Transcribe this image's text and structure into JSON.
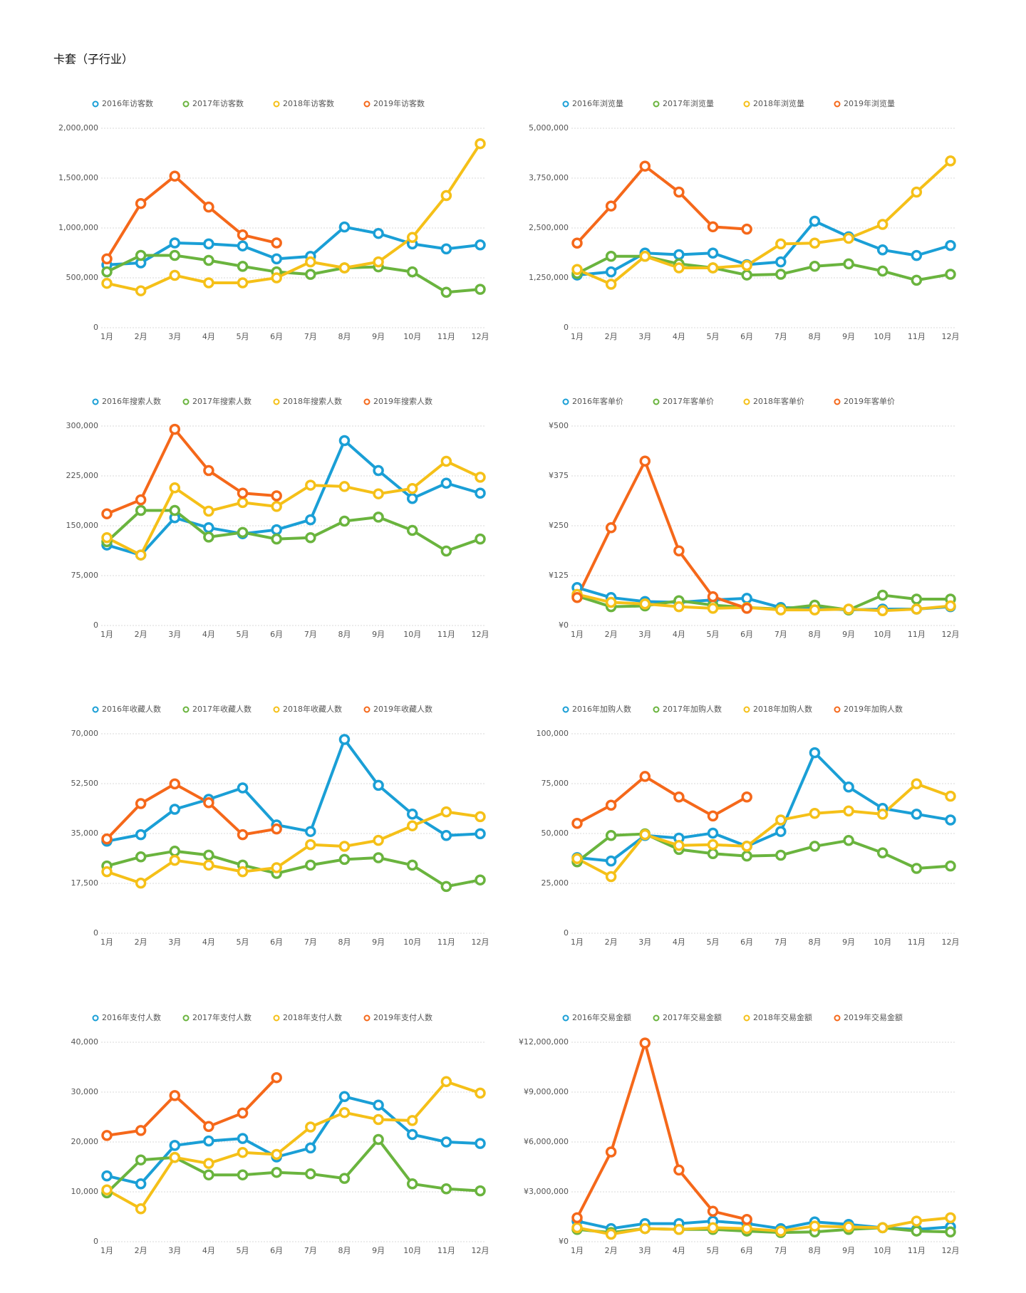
{
  "title": "卡套（子行业）",
  "chart_data": [
    {
      "type": "line",
      "categories": [
        "1月",
        "2月",
        "3月",
        "4月",
        "5月",
        "6月",
        "7月",
        "8月",
        "9月",
        "10月",
        "11月",
        "12月"
      ],
      "ylim": [
        0,
        2000000
      ],
      "yticks": [
        0,
        {
          "value": 500000,
          "label": "500,000"
        },
        {
          "value": 1000000,
          "label": "1,000,000"
        },
        {
          "value": 1500000,
          "label": "1,500,000"
        },
        {
          "value": 2000000,
          "label": "2,000,000"
        }
      ],
      "grid": true,
      "legend": "top",
      "series": [
        {
          "name": "2016年访客数",
          "color": "#1a9fd6",
          "values": [
            630000,
            650000,
            850000,
            840000,
            820000,
            690000,
            715000,
            1010000,
            945000,
            840000,
            790000,
            830000
          ]
        },
        {
          "name": "2017年访客数",
          "color": "#6ab43e",
          "values": [
            560000,
            725000,
            725000,
            675000,
            615000,
            560000,
            535000,
            600000,
            610000,
            560000,
            355000,
            385000
          ]
        },
        {
          "name": "2018年访客数",
          "color": "#f5c018",
          "values": [
            445000,
            370000,
            525000,
            450000,
            450000,
            500000,
            660000,
            600000,
            660000,
            905000,
            1325000,
            1845000
          ]
        },
        {
          "name": "2019年访客数",
          "color": "#f5681a",
          "values": [
            690000,
            1245000,
            1520000,
            1210000,
            930000,
            850000,
            null,
            null,
            null,
            null,
            null,
            null
          ]
        }
      ]
    },
    {
      "type": "line",
      "categories": [
        "1月",
        "2月",
        "3月",
        "4月",
        "5月",
        "6月",
        "7月",
        "8月",
        "9月",
        "10月",
        "11月",
        "12月"
      ],
      "ylim": [
        0,
        5000000
      ],
      "yticks": [
        0,
        {
          "value": 1250000,
          "label": "1,250,000"
        },
        {
          "value": 2500000,
          "label": "2,500,000"
        },
        {
          "value": 3750000,
          "label": "3,750,000"
        },
        {
          "value": 5000000,
          "label": "5,000,000"
        }
      ],
      "grid": true,
      "legend": "top",
      "series": [
        {
          "name": "2016年浏览量",
          "color": "#1a9fd6",
          "values": [
            1320000,
            1400000,
            1870000,
            1830000,
            1870000,
            1580000,
            1650000,
            2670000,
            2280000,
            1950000,
            1810000,
            2060000
          ]
        },
        {
          "name": "2017年浏览量",
          "color": "#6ab43e",
          "values": [
            1360000,
            1790000,
            1790000,
            1600000,
            1500000,
            1320000,
            1340000,
            1540000,
            1600000,
            1420000,
            1190000,
            1340000
          ]
        },
        {
          "name": "2018年浏览量",
          "color": "#f5c018",
          "values": [
            1460000,
            1090000,
            1790000,
            1500000,
            1500000,
            1560000,
            2100000,
            2120000,
            2240000,
            2590000,
            3400000,
            4180000
          ]
        },
        {
          "name": "2019年浏览量",
          "color": "#f5681a",
          "values": [
            2120000,
            3050000,
            4050000,
            3400000,
            2530000,
            2470000,
            null,
            null,
            null,
            null,
            null,
            null
          ]
        }
      ]
    },
    {
      "type": "line",
      "categories": [
        "1月",
        "2月",
        "3月",
        "4月",
        "5月",
        "6月",
        "7月",
        "8月",
        "9月",
        "10月",
        "11月",
        "12月"
      ],
      "ylim": [
        0,
        300000
      ],
      "yticks": [
        0,
        {
          "value": 75000,
          "label": "75,000"
        },
        {
          "value": 150000,
          "label": "150,000"
        },
        {
          "value": 225000,
          "label": "225,000"
        },
        {
          "value": 300000,
          "label": "300,000"
        }
      ],
      "grid": true,
      "legend": "top",
      "series": [
        {
          "name": "2016年搜索人数",
          "color": "#1a9fd6",
          "values": [
            121000,
            106000,
            162000,
            147000,
            138000,
            144000,
            159000,
            278000,
            233000,
            191000,
            214000,
            199000
          ]
        },
        {
          "name": "2017年搜索人数",
          "color": "#6ab43e",
          "values": [
            126000,
            173000,
            173000,
            133000,
            140000,
            130000,
            132000,
            157000,
            163000,
            143000,
            112000,
            130000
          ]
        },
        {
          "name": "2018年搜索人数",
          "color": "#f5c018",
          "values": [
            132000,
            106000,
            207000,
            172000,
            185000,
            179000,
            211000,
            209000,
            198000,
            206000,
            247000,
            223000
          ]
        },
        {
          "name": "2019年搜索人数",
          "color": "#f5681a",
          "values": [
            168000,
            189000,
            295000,
            233000,
            199000,
            195000,
            null,
            null,
            null,
            null,
            null,
            null
          ]
        }
      ]
    },
    {
      "type": "line",
      "categories": [
        "1月",
        "2月",
        "3月",
        "4月",
        "5月",
        "6月",
        "7月",
        "8月",
        "9月",
        "10月",
        "11月",
        "12月"
      ],
      "ylim": [
        0,
        500
      ],
      "yticks": [
        {
          "value": 0,
          "label": "¥0"
        },
        {
          "value": 125,
          "label": "¥125"
        },
        {
          "value": 250,
          "label": "¥250"
        },
        {
          "value": 375,
          "label": "¥375"
        },
        {
          "value": 500,
          "label": "¥500"
        }
      ],
      "grid": true,
      "legend": "top",
      "series": [
        {
          "name": "2016年客单价",
          "color": "#1a9fd6",
          "values": [
            95,
            70,
            60,
            58,
            64,
            68,
            45,
            43,
            39,
            41,
            41,
            47
          ]
        },
        {
          "name": "2017年客单价",
          "color": "#6ab43e",
          "values": [
            74,
            47,
            49,
            62,
            51,
            45,
            41,
            51,
            39,
            76,
            66,
            66
          ]
        },
        {
          "name": "2018年客单价",
          "color": "#f5c018",
          "values": [
            78,
            58,
            54,
            47,
            43,
            45,
            39,
            39,
            41,
            37,
            41,
            49
          ]
        },
        {
          "name": "2019年客单价",
          "color": "#f5681a",
          "values": [
            70,
            245,
            412,
            187,
            72,
            43,
            null,
            null,
            null,
            null,
            null,
            null
          ]
        }
      ]
    },
    {
      "type": "line",
      "categories": [
        "1月",
        "2月",
        "3月",
        "4月",
        "5月",
        "6月",
        "7月",
        "8月",
        "9月",
        "10月",
        "11月",
        "12月"
      ],
      "ylim": [
        0,
        70000
      ],
      "yticks": [
        0,
        {
          "value": 17500,
          "label": "17,500"
        },
        {
          "value": 35000,
          "label": "35,000"
        },
        {
          "value": 52500,
          "label": "52,500"
        },
        {
          "value": 70000,
          "label": "70,000"
        }
      ],
      "grid": true,
      "legend": "top",
      "series": [
        {
          "name": "2016年收藏人数",
          "color": "#1a9fd6",
          "values": [
            32300,
            34600,
            43500,
            47000,
            51000,
            38000,
            35700,
            68000,
            51900,
            41800,
            34300,
            34900
          ]
        },
        {
          "name": "2017年收藏人数",
          "color": "#6ab43e",
          "values": [
            23600,
            26800,
            28800,
            27400,
            23900,
            21000,
            23900,
            25900,
            26500,
            23900,
            16400,
            18700
          ]
        },
        {
          "name": "2018年收藏人数",
          "color": "#f5c018",
          "values": [
            21600,
            17600,
            25600,
            23900,
            21600,
            23000,
            31100,
            30500,
            32600,
            37700,
            42600,
            40900
          ]
        },
        {
          "name": "2019年收藏人数",
          "color": "#f5681a",
          "values": [
            33100,
            45500,
            52400,
            45800,
            34600,
            36600,
            null,
            null,
            null,
            null,
            null,
            null
          ]
        }
      ]
    },
    {
      "type": "line",
      "categories": [
        "1月",
        "2月",
        "3月",
        "4月",
        "5月",
        "6月",
        "7月",
        "8月",
        "9月",
        "10月",
        "11月",
        "12月"
      ],
      "ylim": [
        0,
        100000
      ],
      "yticks": [
        0,
        {
          "value": 25000,
          "label": "25,000"
        },
        {
          "value": 50000,
          "label": "50,000"
        },
        {
          "value": 75000,
          "label": "75,000"
        },
        {
          "value": 100000,
          "label": "100,000"
        }
      ],
      "grid": true,
      "legend": "top",
      "series": [
        {
          "name": "2016年加购人数",
          "color": "#1a9fd6",
          "values": [
            37900,
            36200,
            49000,
            47700,
            50200,
            43600,
            51000,
            90500,
            73300,
            62600,
            59700,
            56800
          ]
        },
        {
          "name": "2017年加购人数",
          "color": "#6ab43e",
          "values": [
            35800,
            49000,
            49800,
            42000,
            39900,
            38700,
            39100,
            43600,
            46500,
            40300,
            32500,
            33700
          ]
        },
        {
          "name": "2018年加购人数",
          "color": "#f5c018",
          "values": [
            37400,
            28400,
            49400,
            44000,
            44400,
            43600,
            56800,
            60100,
            61300,
            59700,
            74900,
            68700
          ]
        },
        {
          "name": "2019年加购人数",
          "color": "#f5681a",
          "values": [
            55100,
            64200,
            78600,
            68300,
            58800,
            68300,
            null,
            null,
            null,
            null,
            null,
            null
          ]
        }
      ]
    },
    {
      "type": "line",
      "categories": [
        "1月",
        "2月",
        "3月",
        "4月",
        "5月",
        "6月",
        "7月",
        "8月",
        "9月",
        "10月",
        "11月",
        "12月"
      ],
      "ylim": [
        0,
        40000
      ],
      "yticks": [
        0,
        {
          "value": 10000,
          "label": "10,000"
        },
        {
          "value": 20000,
          "label": "20,000"
        },
        {
          "value": 30000,
          "label": "30,000"
        },
        {
          "value": 40000,
          "label": "40,000"
        }
      ],
      "grid": true,
      "legend": "top",
      "series": [
        {
          "name": "2016年支付人数",
          "color": "#1a9fd6",
          "values": [
            13200,
            11600,
            19300,
            20200,
            20700,
            17000,
            18800,
            29100,
            27400,
            21500,
            20000,
            19700
          ]
        },
        {
          "name": "2017年支付人数",
          "color": "#6ab43e",
          "values": [
            9800,
            16400,
            16900,
            13400,
            13400,
            13900,
            13600,
            12700,
            20500,
            11600,
            10600,
            10200
          ]
        },
        {
          "name": "2018年支付人数",
          "color": "#f5c018",
          "values": [
            10400,
            6600,
            16900,
            15700,
            17900,
            17500,
            23000,
            25900,
            24500,
            24300,
            32100,
            29800
          ]
        },
        {
          "name": "2019年支付人数",
          "color": "#f5681a",
          "values": [
            21300,
            22300,
            29300,
            23100,
            25800,
            32900,
            null,
            null,
            null,
            null,
            null,
            null
          ]
        }
      ]
    },
    {
      "type": "line",
      "categories": [
        "1月",
        "2月",
        "3月",
        "4月",
        "5月",
        "6月",
        "7月",
        "8月",
        "9月",
        "10月",
        "11月",
        "12月"
      ],
      "ylim": [
        0,
        12000000
      ],
      "yticks": [
        {
          "value": 0,
          "label": "¥0"
        },
        {
          "value": 3000000,
          "label": "¥3,000,000"
        },
        {
          "value": 6000000,
          "label": "¥6,000,000"
        },
        {
          "value": 9000000,
          "label": "¥9,000,000"
        },
        {
          "value": 12000000,
          "label": "¥12,000,000"
        }
      ],
      "grid": true,
      "legend": "top",
      "series": [
        {
          "name": "2016年交易金额",
          "color": "#1a9fd6",
          "values": [
            1240000,
            790000,
            1090000,
            1090000,
            1240000,
            1090000,
            790000,
            1190000,
            1040000,
            840000,
            740000,
            890000
          ]
        },
        {
          "name": "2017年交易金额",
          "color": "#6ab43e",
          "values": [
            740000,
            550000,
            790000,
            740000,
            740000,
            640000,
            550000,
            590000,
            740000,
            840000,
            640000,
            590000
          ]
        },
        {
          "name": "2018年交易金额",
          "color": "#f5c018",
          "values": [
            840000,
            450000,
            790000,
            740000,
            840000,
            790000,
            640000,
            940000,
            890000,
            840000,
            1240000,
            1440000
          ]
        },
        {
          "name": "2019年交易金额",
          "color": "#f5681a",
          "values": [
            1440000,
            5400000,
            11950000,
            4310000,
            1830000,
            1340000,
            null,
            null,
            null,
            null,
            null,
            null
          ]
        }
      ]
    }
  ]
}
